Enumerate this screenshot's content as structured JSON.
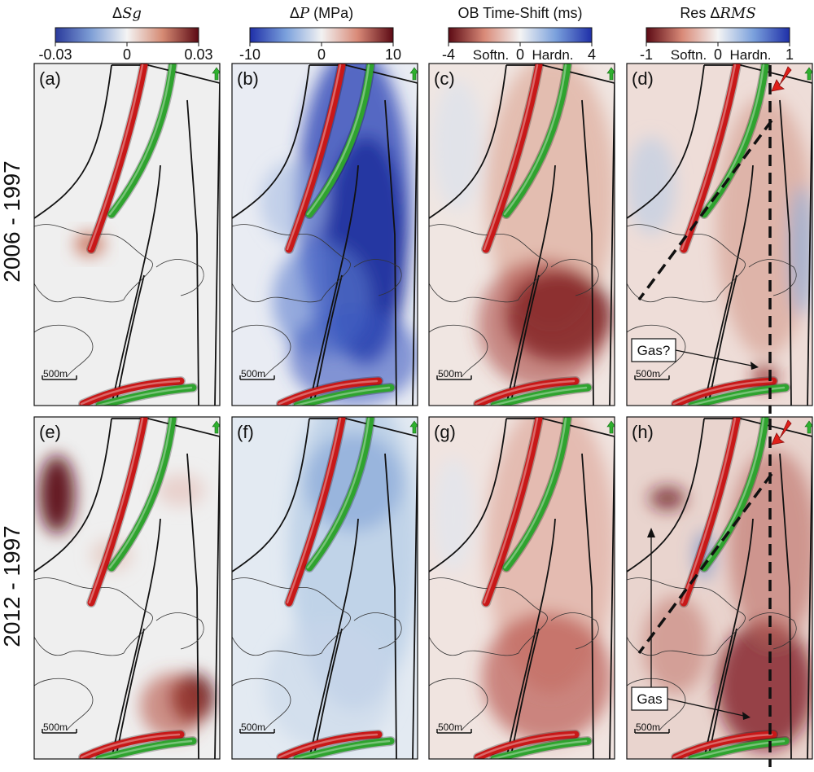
{
  "colorbars": [
    {
      "id": "sg",
      "title_prefix": "Δ",
      "title_var": "Sg",
      "title_suffix": "",
      "ticks": [
        "-0.03",
        "0",
        "0.03"
      ],
      "end_labels": [
        "",
        ""
      ],
      "stops": [
        "#2a3a9c",
        "#7f9fd6",
        "#f4f4f4",
        "#d58a73",
        "#5c0a14"
      ]
    },
    {
      "id": "p",
      "title_prefix": "Δ",
      "title_var": "P",
      "title_suffix": " (MPa)",
      "ticks": [
        "-10",
        "0",
        "10"
      ],
      "end_labels": [
        "",
        ""
      ],
      "stops": [
        "#1f2fa8",
        "#7aa0dc",
        "#f2f2f2",
        "#d98a78",
        "#5c0a14"
      ]
    },
    {
      "id": "ts",
      "title_prefix": "",
      "title_var": "",
      "title_suffix": "OB Time-Shift (ms)",
      "ticks": [
        "-4",
        "0",
        "4"
      ],
      "end_labels": [
        "Softn.",
        "Hardn."
      ],
      "stops": [
        "#5c0a14",
        "#d98a78",
        "#f4f4f4",
        "#7aa0dc",
        "#1f2fa8"
      ]
    },
    {
      "id": "rms",
      "title_prefix": "Res Δ",
      "title_var": "RMS",
      "title_suffix": "",
      "ticks": [
        "-1",
        "0",
        "1"
      ],
      "end_labels": [
        "Softn.",
        "Hardn."
      ],
      "stops": [
        "#5c0a14",
        "#d98a78",
        "#f4f4f4",
        "#7aa0dc",
        "#1f2fa8"
      ]
    }
  ],
  "row_labels": [
    "2006 - 1997",
    "2012 - 1997"
  ],
  "panels": [
    {
      "letter": "(a)",
      "field": "sg",
      "row": 0,
      "col": 0
    },
    {
      "letter": "(b)",
      "field": "p",
      "row": 0,
      "col": 1
    },
    {
      "letter": "(c)",
      "field": "ts",
      "row": 0,
      "col": 2
    },
    {
      "letter": "(d)",
      "field": "rms",
      "row": 0,
      "col": 3,
      "annotation": "Gas?"
    },
    {
      "letter": "(e)",
      "field": "sg",
      "row": 1,
      "col": 0
    },
    {
      "letter": "(f)",
      "field": "p",
      "row": 1,
      "col": 1
    },
    {
      "letter": "(g)",
      "field": "ts",
      "row": 1,
      "col": 2
    },
    {
      "letter": "(h)",
      "field": "rms",
      "row": 1,
      "col": 3,
      "annotation": "Gas"
    }
  ],
  "scale_bar_label": "500m",
  "colors": {
    "well_red": "#c81818",
    "well_green": "#2fa32f",
    "arrow_red": "#e0201a",
    "fault": "#111111"
  }
}
